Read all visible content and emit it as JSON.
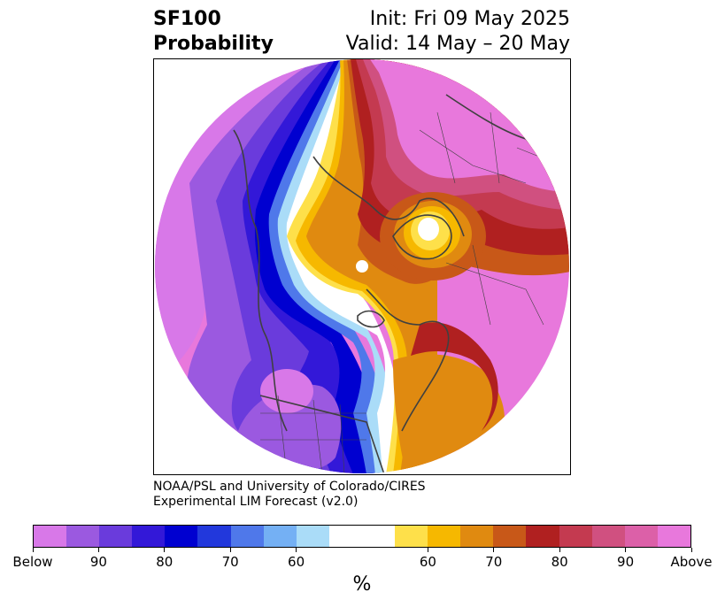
{
  "header": {
    "title_line1": "SF100",
    "title_line2": "Probability",
    "init": "Init: Fri 09 May 2025",
    "valid": "Valid: 14 May – 20 May"
  },
  "credit": {
    "line1": "NOAA/PSL and University of Colorado/CIRES",
    "line2": "Experimental LIM Forecast (v2.0)"
  },
  "colorbar": {
    "units": "%",
    "colors": [
      "#d878e8",
      "#9b59e0",
      "#6a3bdc",
      "#3318d8",
      "#0000d0",
      "#2238dc",
      "#4f78ea",
      "#74b0f4",
      "#aadcf8",
      "#ffffff",
      "#ffffff",
      "#fee04a",
      "#f6b800",
      "#e08a10",
      "#c85818",
      "#b02020",
      "#c43a50",
      "#d05080",
      "#dc60a8",
      "#e878dc"
    ],
    "ticks": [
      {
        "label": "Below",
        "index": 0
      },
      {
        "label": "90",
        "index": 2
      },
      {
        "label": "80",
        "index": 4
      },
      {
        "label": "70",
        "index": 6
      },
      {
        "label": "60",
        "index": 8
      },
      {
        "label": "60",
        "index": 12
      },
      {
        "label": "70",
        "index": 14
      },
      {
        "label": "80",
        "index": 16
      },
      {
        "label": "90",
        "index": 18
      },
      {
        "label": "Above",
        "index": 20
      }
    ]
  },
  "map": {
    "projection": "north-polar-stereographic",
    "colors": {
      "below_far": "#d878e8",
      "below_90": "#9b59e0",
      "below_85": "#6a3bdc",
      "below_80": "#3318d8",
      "below_75": "#0000d0",
      "below_70": "#2238dc",
      "below_65": "#4f78ea",
      "below_60": "#74b0f4",
      "below_55": "#aadcf8",
      "neutral": "#ffffff",
      "above_55": "#fee04a",
      "above_60": "#f6b800",
      "above_65": "#e08a10",
      "above_70": "#c85818",
      "above_75": "#b02020",
      "above_80": "#c43a50",
      "above_85": "#d05080",
      "above_90": "#dc60a8",
      "above_far": "#e878dc",
      "coastline": "#404040"
    }
  }
}
